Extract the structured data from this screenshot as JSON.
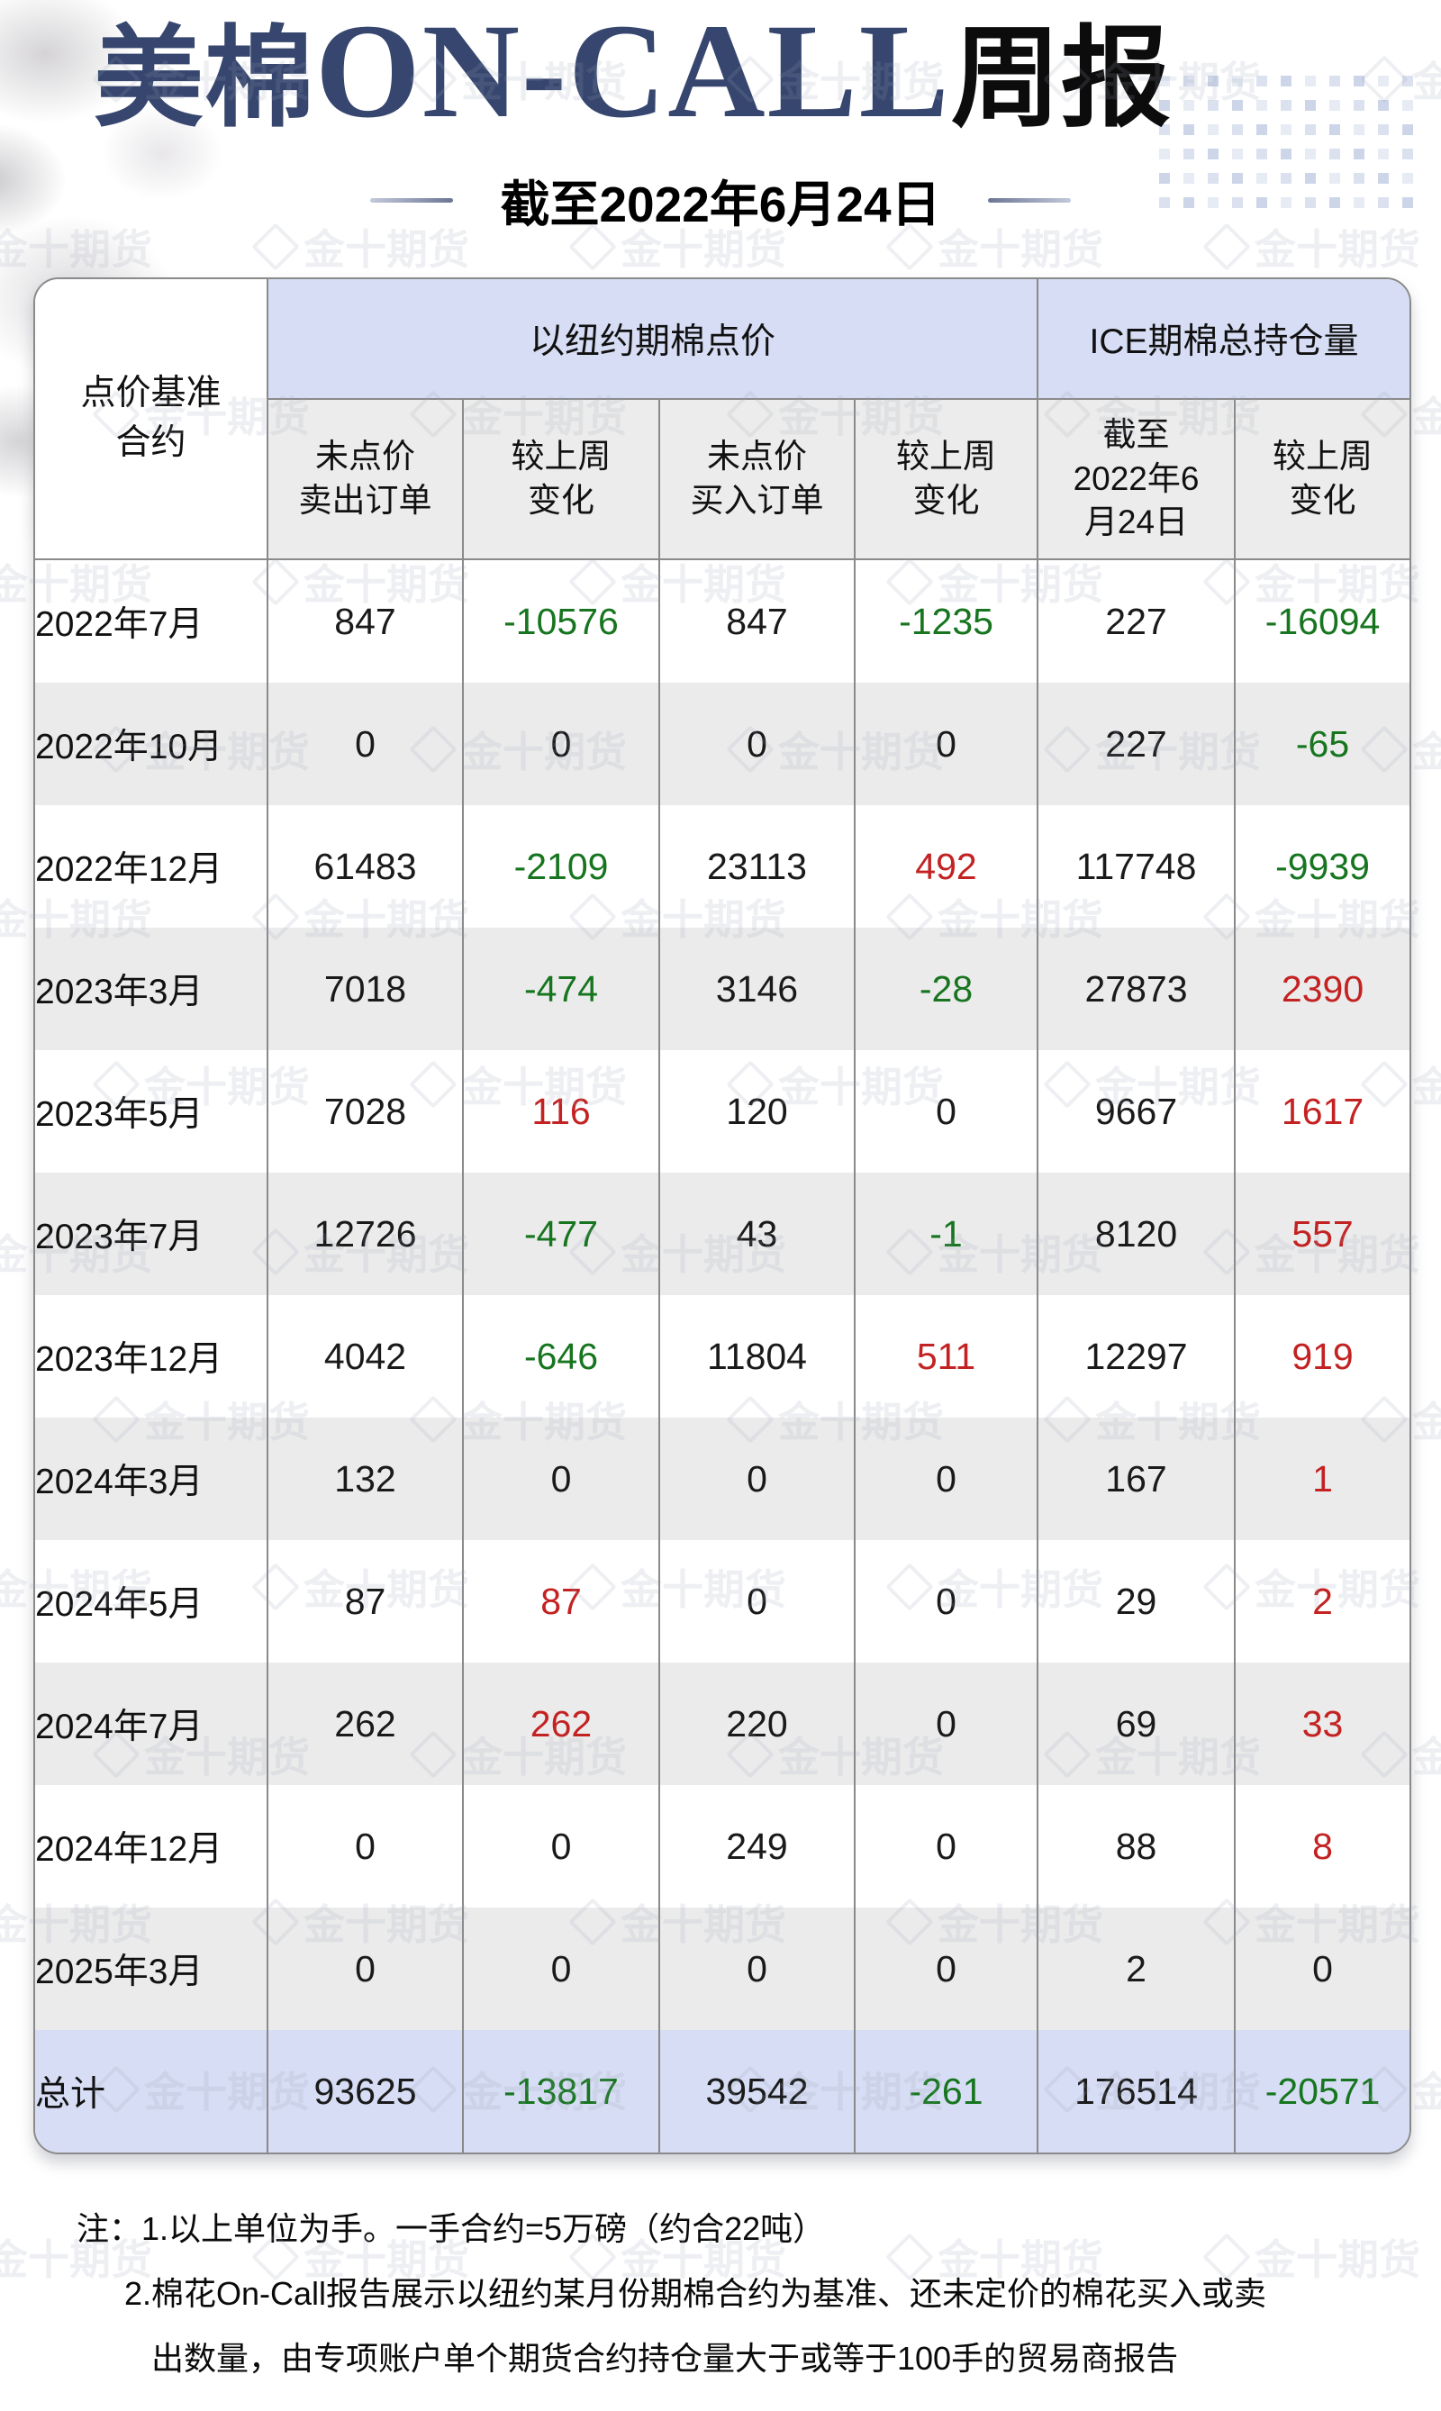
{
  "page": {
    "title_cjk": "美棉",
    "title_latin": "ON-CALL",
    "title_rest": "周报",
    "subtitle": "截至2022年6月24日"
  },
  "watermark": {
    "text": "金十期货",
    "icon": "gem-icon"
  },
  "colors": {
    "title_accent": "#36466e",
    "group_header_bg": "#d6ddf4",
    "subheader_bg": "#ececec",
    "alt_row_bg": "#ebebeb",
    "total_row_bg": "#d6ddf4",
    "border": "#8a8a8a",
    "positive_red": "#c32222",
    "negative_green": "#17751f"
  },
  "table": {
    "corner_header": "点价基准\n合约",
    "groups": [
      {
        "label": "以纽约期棉点价"
      },
      {
        "label": "ICE期棉总持仓量"
      }
    ],
    "sub_headers": [
      "未点价\n卖出订单",
      "较上周\n变化",
      "未点价\n买入订单",
      "较上周\n变化",
      "截至\n2022年6\n月24日",
      "较上周\n变化"
    ],
    "rows": [
      {
        "label": "2022年7月",
        "cells": [
          {
            "text": "847",
            "tone": "neutral"
          },
          {
            "text": "-10576",
            "tone": "down"
          },
          {
            "text": "847",
            "tone": "neutral"
          },
          {
            "text": "-1235",
            "tone": "down"
          },
          {
            "text": "227",
            "tone": "neutral"
          },
          {
            "text": "-16094",
            "tone": "down"
          }
        ]
      },
      {
        "label": "2022年10月",
        "cells": [
          {
            "text": "0",
            "tone": "neutral"
          },
          {
            "text": "0",
            "tone": "neutral"
          },
          {
            "text": "0",
            "tone": "neutral"
          },
          {
            "text": "0",
            "tone": "neutral"
          },
          {
            "text": "227",
            "tone": "neutral"
          },
          {
            "text": "-65",
            "tone": "down"
          }
        ]
      },
      {
        "label": "2022年12月",
        "cells": [
          {
            "text": "61483",
            "tone": "neutral"
          },
          {
            "text": "-2109",
            "tone": "down"
          },
          {
            "text": "23113",
            "tone": "neutral"
          },
          {
            "text": "492",
            "tone": "up"
          },
          {
            "text": "117748",
            "tone": "neutral"
          },
          {
            "text": "-9939",
            "tone": "down"
          }
        ]
      },
      {
        "label": "2023年3月",
        "cells": [
          {
            "text": "7018",
            "tone": "neutral"
          },
          {
            "text": "-474",
            "tone": "down"
          },
          {
            "text": "3146",
            "tone": "neutral"
          },
          {
            "text": "-28",
            "tone": "down"
          },
          {
            "text": "27873",
            "tone": "neutral"
          },
          {
            "text": "2390",
            "tone": "up"
          }
        ]
      },
      {
        "label": "2023年5月",
        "cells": [
          {
            "text": "7028",
            "tone": "neutral"
          },
          {
            "text": "116",
            "tone": "up"
          },
          {
            "text": "120",
            "tone": "neutral"
          },
          {
            "text": "0",
            "tone": "neutral"
          },
          {
            "text": "9667",
            "tone": "neutral"
          },
          {
            "text": "1617",
            "tone": "up"
          }
        ]
      },
      {
        "label": "2023年7月",
        "cells": [
          {
            "text": "12726",
            "tone": "neutral"
          },
          {
            "text": "-477",
            "tone": "down"
          },
          {
            "text": "43",
            "tone": "neutral"
          },
          {
            "text": "-1",
            "tone": "down"
          },
          {
            "text": "8120",
            "tone": "neutral"
          },
          {
            "text": "557",
            "tone": "up"
          }
        ]
      },
      {
        "label": "2023年12月",
        "cells": [
          {
            "text": "4042",
            "tone": "neutral"
          },
          {
            "text": "-646",
            "tone": "down"
          },
          {
            "text": "11804",
            "tone": "neutral"
          },
          {
            "text": "511",
            "tone": "up"
          },
          {
            "text": "12297",
            "tone": "neutral"
          },
          {
            "text": "919",
            "tone": "up"
          }
        ]
      },
      {
        "label": "2024年3月",
        "cells": [
          {
            "text": "132",
            "tone": "neutral"
          },
          {
            "text": "0",
            "tone": "neutral"
          },
          {
            "text": "0",
            "tone": "neutral"
          },
          {
            "text": "0",
            "tone": "neutral"
          },
          {
            "text": "167",
            "tone": "neutral"
          },
          {
            "text": "1",
            "tone": "up"
          }
        ]
      },
      {
        "label": "2024年5月",
        "cells": [
          {
            "text": "87",
            "tone": "neutral"
          },
          {
            "text": "87",
            "tone": "up"
          },
          {
            "text": "0",
            "tone": "neutral"
          },
          {
            "text": "0",
            "tone": "neutral"
          },
          {
            "text": "29",
            "tone": "neutral"
          },
          {
            "text": "2",
            "tone": "up"
          }
        ]
      },
      {
        "label": "2024年7月",
        "cells": [
          {
            "text": "262",
            "tone": "neutral"
          },
          {
            "text": "262",
            "tone": "up"
          },
          {
            "text": "220",
            "tone": "neutral"
          },
          {
            "text": "0",
            "tone": "neutral"
          },
          {
            "text": "69",
            "tone": "neutral"
          },
          {
            "text": "33",
            "tone": "up"
          }
        ]
      },
      {
        "label": "2024年12月",
        "cells": [
          {
            "text": "0",
            "tone": "neutral"
          },
          {
            "text": "0",
            "tone": "neutral"
          },
          {
            "text": "249",
            "tone": "neutral"
          },
          {
            "text": "0",
            "tone": "neutral"
          },
          {
            "text": "88",
            "tone": "neutral"
          },
          {
            "text": "8",
            "tone": "up"
          }
        ]
      },
      {
        "label": "2025年3月",
        "cells": [
          {
            "text": "0",
            "tone": "neutral"
          },
          {
            "text": "0",
            "tone": "neutral"
          },
          {
            "text": "0",
            "tone": "neutral"
          },
          {
            "text": "0",
            "tone": "neutral"
          },
          {
            "text": "2",
            "tone": "neutral"
          },
          {
            "text": "0",
            "tone": "neutral"
          }
        ]
      },
      {
        "label": "总计",
        "total": true,
        "cells": [
          {
            "text": "93625",
            "tone": "neutral"
          },
          {
            "text": "-13817",
            "tone": "down"
          },
          {
            "text": "39542",
            "tone": "neutral"
          },
          {
            "text": "-261",
            "tone": "down"
          },
          {
            "text": "176514",
            "tone": "neutral"
          },
          {
            "text": "-20571",
            "tone": "down"
          }
        ]
      }
    ]
  },
  "notes": {
    "line1": "注：1.以上单位为手。一手合约=5万磅（约合22吨）",
    "line2": "2.棉花On-Call报告展示以纽约某月份期棉合约为基准、还未定价的棉花买入或卖",
    "line3": "出数量，由专项账户单个期货合约持仓量大于或等于100手的贸易商报告"
  }
}
